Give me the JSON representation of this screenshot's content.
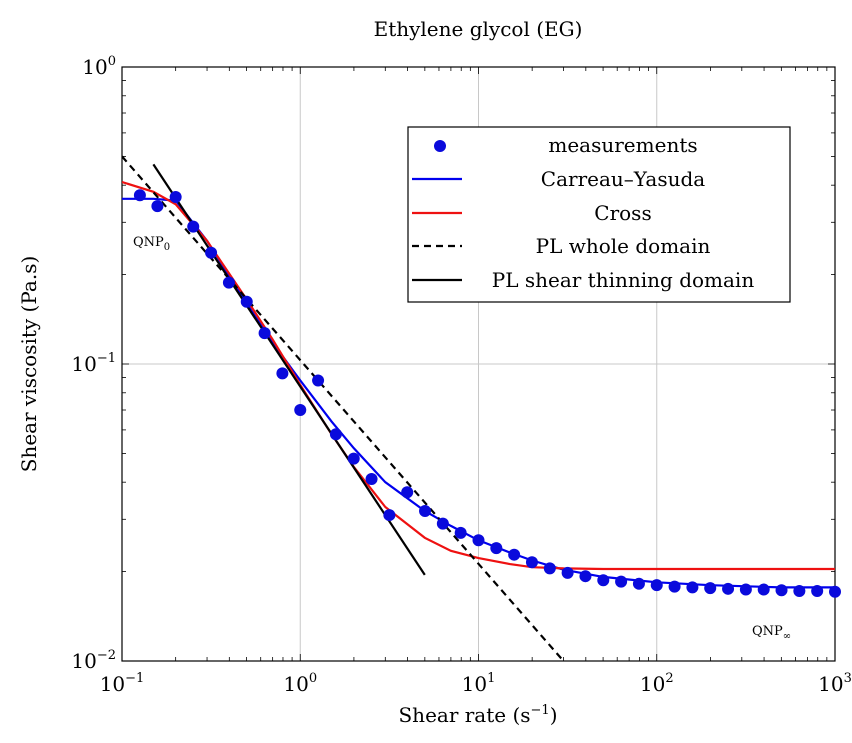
{
  "chart_data": {
    "type": "scatter",
    "title": "Ethylene glycol (EG)",
    "xlabel": "Shear rate (s",
    "xlabel_sup": "−1",
    "xlabel_end": ")",
    "ylabel": "Shear viscosity (Pa.s)",
    "xscale": "log",
    "yscale": "log",
    "xlim": [
      0.1,
      1000
    ],
    "ylim": [
      0.01,
      1
    ],
    "grid": true,
    "legend_position": "top-right",
    "x_ticks": [
      {
        "base": "10",
        "exp": "−1"
      },
      {
        "base": "10",
        "exp": "0"
      },
      {
        "base": "10",
        "exp": "1"
      },
      {
        "base": "10",
        "exp": "2"
      },
      {
        "base": "10",
        "exp": "3"
      }
    ],
    "y_ticks": [
      {
        "base": "10",
        "exp": "−2"
      },
      {
        "base": "10",
        "exp": "−1"
      },
      {
        "base": "10",
        "exp": "0"
      }
    ],
    "annotations": {
      "qnp0": {
        "main": "QNP",
        "sub": "0"
      },
      "qnpinf": {
        "main": "QNP",
        "sub": "∞"
      }
    },
    "series": [
      {
        "name": "measurements",
        "kind": "markers",
        "color": "#0a0adc",
        "x": [
          0.126,
          0.158,
          0.2,
          0.251,
          0.316,
          0.398,
          0.501,
          0.631,
          0.794,
          1.0,
          1.259,
          1.585,
          1.995,
          2.512,
          3.162,
          3.981,
          5.012,
          6.31,
          7.943,
          10.0,
          12.59,
          15.85,
          19.95,
          25.12,
          31.62,
          39.81,
          50.12,
          63.1,
          79.43,
          100.0,
          125.9,
          158.5,
          199.5,
          251.2,
          316.2,
          398.1,
          501.2,
          631.0,
          794.3,
          1000.0
        ],
        "y": [
          0.37,
          0.34,
          0.365,
          0.29,
          0.237,
          0.188,
          0.162,
          0.127,
          0.093,
          0.07,
          0.088,
          0.058,
          0.048,
          0.041,
          0.031,
          0.037,
          0.032,
          0.029,
          0.027,
          0.0255,
          0.024,
          0.0228,
          0.0215,
          0.0205,
          0.0198,
          0.0193,
          0.0187,
          0.0185,
          0.0182,
          0.018,
          0.0178,
          0.0177,
          0.0176,
          0.0175,
          0.0174,
          0.0174,
          0.0173,
          0.0172,
          0.0172,
          0.0171
        ]
      },
      {
        "name": "Carreau–Yasuda",
        "kind": "line",
        "color": "#0000ee",
        "dash": "",
        "x": [
          0.1,
          0.15,
          0.2,
          0.3,
          0.5,
          0.7,
          1.0,
          1.5,
          2.0,
          3.0,
          5.0,
          7.0,
          10.0,
          15.0,
          20.0,
          30.0,
          50.0,
          100.0,
          200.0,
          500.0,
          1000.0
        ],
        "y": [
          0.36,
          0.36,
          0.355,
          0.26,
          0.16,
          0.118,
          0.088,
          0.064,
          0.052,
          0.04,
          0.032,
          0.0285,
          0.0255,
          0.0232,
          0.0218,
          0.0203,
          0.0192,
          0.0184,
          0.018,
          0.0177,
          0.0177
        ]
      },
      {
        "name": "Cross",
        "kind": "line",
        "color": "#ee1111",
        "dash": "",
        "x": [
          0.1,
          0.15,
          0.2,
          0.3,
          0.5,
          0.7,
          1.0,
          1.5,
          2.0,
          3.0,
          5.0,
          7.0,
          10.0,
          15.0,
          20.0,
          30.0,
          50.0,
          100.0,
          1000.0
        ],
        "y": [
          0.41,
          0.38,
          0.345,
          0.26,
          0.165,
          0.121,
          0.085,
          0.058,
          0.045,
          0.033,
          0.026,
          0.0235,
          0.0222,
          0.0212,
          0.0207,
          0.0205,
          0.0204,
          0.0204,
          0.0204
        ]
      },
      {
        "name": "PL whole domain",
        "kind": "line",
        "color": "#000000",
        "dash": "7,5",
        "x": [
          0.1,
          30.0
        ],
        "y": [
          0.5,
          0.01
        ]
      },
      {
        "name": "PL shear thinning domain",
        "kind": "line",
        "color": "#000000",
        "dash": "",
        "x": [
          0.15,
          5.0
        ],
        "y": [
          0.47,
          0.0195
        ]
      }
    ]
  }
}
